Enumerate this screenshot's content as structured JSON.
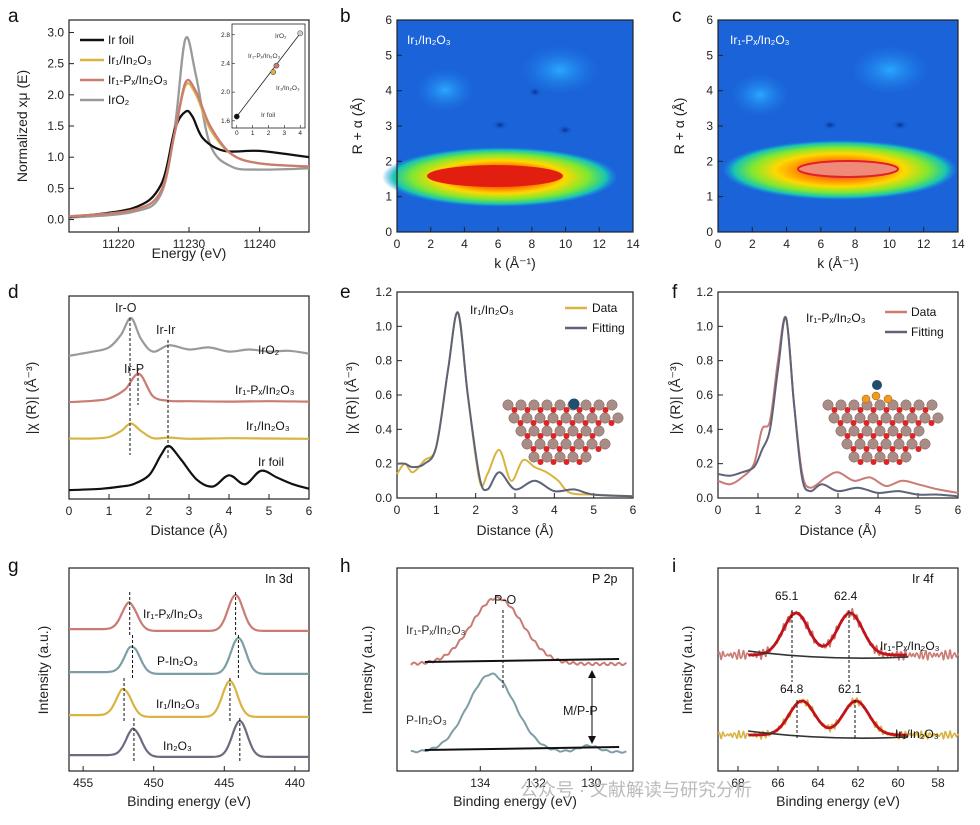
{
  "figure": {
    "panel_labels": [
      "a",
      "b",
      "c",
      "d",
      "e",
      "f",
      "g",
      "h",
      "i"
    ],
    "watermark": "公众号 · 文献解读与研究分析"
  },
  "colors": {
    "ir_foil": "#111111",
    "ir_in2o3": "#d9b443",
    "ir_px_in2o3": "#c97b74",
    "iro2": "#9a9a9a",
    "fit": "#5d6378",
    "p_in2o3": "#7e9ea6",
    "in2o3": "#6a6c82",
    "fit_red": "#c2121c"
  },
  "chart_data": [
    {
      "panel": "a",
      "type": "line",
      "xlabel": "Energy (eV)",
      "ylabel": "Normalized xμ (E)",
      "xlim": [
        11213,
        11247
      ],
      "ylim": [
        -0.2,
        3.2
      ],
      "xticks": [
        11220,
        11230,
        11240
      ],
      "yticks": [
        0.0,
        0.5,
        1.0,
        1.5,
        2.0,
        2.5,
        3.0
      ],
      "series": [
        {
          "name": "Ir foil",
          "x": [
            11213,
            11222,
            11226,
            11228,
            11229.5,
            11230.5,
            11232,
            11235,
            11240,
            11247
          ],
          "y": [
            0.04,
            0.18,
            0.55,
            1.45,
            1.73,
            1.65,
            1.3,
            1.1,
            1.1,
            1.0
          ]
        },
        {
          "name": "Ir₁/In₂O₃",
          "x": [
            11213,
            11222,
            11226,
            11228,
            11229.5,
            11231,
            11233,
            11236,
            11240,
            11247
          ],
          "y": [
            0.05,
            0.15,
            0.45,
            1.4,
            2.15,
            2.0,
            1.45,
            1.05,
            0.9,
            0.85
          ]
        },
        {
          "name": "Ir₁-Pₓ/In₂O₃",
          "x": [
            11213,
            11222,
            11226,
            11228,
            11229.5,
            11231,
            11233,
            11236,
            11240,
            11247
          ],
          "y": [
            0.05,
            0.15,
            0.45,
            1.4,
            2.2,
            2.05,
            1.5,
            1.05,
            0.9,
            0.85
          ]
        },
        {
          "name": "IrO₂",
          "x": [
            11213,
            11222,
            11226,
            11228,
            11229.5,
            11231,
            11233,
            11236,
            11240,
            11247
          ],
          "y": [
            0.03,
            0.12,
            0.4,
            1.5,
            2.9,
            2.3,
            1.2,
            0.85,
            0.8,
            0.82
          ]
        }
      ],
      "inset": {
        "xticks": [
          0,
          1,
          2,
          3,
          4
        ],
        "yticks": [
          1.6,
          2.0,
          2.4,
          2.8
        ],
        "xlim": [
          -0.3,
          4.3
        ],
        "ylim": [
          1.5,
          2.95
        ],
        "points": [
          {
            "name": "Ir foil",
            "x": 0,
            "y": 1.66
          },
          {
            "name": "Ir₁/In₂O₃",
            "x": 2.3,
            "y": 2.28
          },
          {
            "name": "Ir₁-Pₓ/In₂O₃",
            "x": 2.5,
            "y": 2.37
          },
          {
            "name": "IrO₂",
            "x": 4,
            "y": 2.82
          }
        ]
      }
    },
    {
      "panel": "b",
      "type": "heatmap",
      "title": "Ir₁/In₂O₃",
      "xlabel": "k (Å⁻¹)",
      "ylabel": "R + α (Å)",
      "xlim": [
        0,
        14
      ],
      "ylim": [
        0,
        6
      ],
      "xticks": [
        0,
        2,
        4,
        6,
        8,
        10,
        12,
        14
      ],
      "yticks": [
        0,
        1,
        2,
        3,
        4,
        5,
        6
      ],
      "maximum": {
        "k": 6.0,
        "R": 1.55
      }
    },
    {
      "panel": "c",
      "type": "heatmap",
      "title": "Ir₁-Pₓ/In₂O₃",
      "xlabel": "k (Å⁻¹)",
      "ylabel": "R + α (Å)",
      "xlim": [
        0,
        14
      ],
      "ylim": [
        0,
        6
      ],
      "xticks": [
        0,
        2,
        4,
        6,
        8,
        10,
        12,
        14
      ],
      "yticks": [
        0,
        1,
        2,
        3,
        4,
        5,
        6
      ],
      "maximum": {
        "k": 7.5,
        "R": 1.8
      }
    },
    {
      "panel": "d",
      "type": "line",
      "xlabel": "Distance (Å)",
      "ylabel": "|χ (R)| (Å⁻³)",
      "xlim": [
        0,
        6
      ],
      "xticks": [
        0,
        1,
        2,
        3,
        4,
        5,
        6
      ],
      "annotations": [
        {
          "text": "Ir-O",
          "x": 1.55
        },
        {
          "text": "Ir-Ir",
          "x": 2.5
        },
        {
          "text": "Ir-P",
          "x": 1.75
        }
      ],
      "series": [
        {
          "name": "IrO₂",
          "x": [
            0,
            0.6,
            1.0,
            1.3,
            1.55,
            1.8,
            2.1,
            2.5,
            3.0,
            3.5,
            4.0,
            4.5,
            5.0,
            5.5,
            6.0
          ],
          "y": [
            0.1,
            0.2,
            0.3,
            0.6,
            1.0,
            0.5,
            0.2,
            0.35,
            0.25,
            0.3,
            0.2,
            0.25,
            0.2,
            0.22,
            0.15
          ]
        },
        {
          "name": "Ir₁-Pₓ/In₂O₃",
          "x": [
            0,
            0.6,
            1.0,
            1.4,
            1.75,
            2.1,
            2.5,
            3.0,
            4.0,
            5.0,
            6.0
          ],
          "y": [
            0.02,
            0.05,
            0.1,
            0.3,
            0.65,
            0.15,
            0.05,
            0.04,
            0.03,
            0.04,
            0.03
          ]
        },
        {
          "name": "Ir₁/In₂O₃",
          "x": [
            0,
            0.6,
            1.0,
            1.3,
            1.55,
            1.8,
            2.1,
            2.5,
            3.0,
            4.0,
            5.0,
            6.0
          ],
          "y": [
            0.05,
            0.05,
            0.1,
            0.3,
            0.55,
            0.3,
            0.06,
            0.08,
            0.04,
            0.06,
            0.05,
            0.04
          ]
        },
        {
          "name": "Ir foil",
          "x": [
            0,
            0.8,
            1.3,
            1.6,
            2.0,
            2.3,
            2.5,
            2.8,
            3.2,
            3.6,
            4.0,
            4.4,
            4.8,
            5.2,
            5.6,
            6.0
          ],
          "y": [
            0.02,
            0.05,
            0.1,
            0.15,
            0.35,
            0.8,
            1.0,
            0.7,
            0.25,
            0.1,
            0.35,
            0.15,
            0.45,
            0.3,
            0.15,
            0.05
          ]
        }
      ]
    },
    {
      "panel": "e",
      "type": "line",
      "title": "Ir₁/In₂O₃",
      "xlabel": "Distance (Å)",
      "ylabel": "|χ (R)| (Å⁻³)",
      "xlim": [
        0,
        6
      ],
      "ylim": [
        0,
        1.2
      ],
      "xticks": [
        0,
        1,
        2,
        3,
        4,
        5,
        6
      ],
      "yticks": [
        0.0,
        0.2,
        0.4,
        0.6,
        0.8,
        1.0,
        1.2
      ],
      "series": [
        {
          "name": "Data",
          "x": [
            0,
            0.2,
            0.4,
            0.7,
            1.0,
            1.3,
            1.55,
            1.8,
            2.1,
            2.3,
            2.6,
            2.9,
            3.2,
            3.5,
            3.8,
            4.1,
            4.4,
            5.0,
            6.0
          ],
          "y": [
            0.14,
            0.2,
            0.15,
            0.22,
            0.3,
            0.75,
            1.08,
            0.6,
            0.1,
            0.14,
            0.28,
            0.1,
            0.22,
            0.18,
            0.15,
            0.1,
            0.03,
            0.02,
            0.01
          ]
        },
        {
          "name": "Fitting",
          "x": [
            0,
            0.2,
            0.4,
            0.7,
            1.0,
            1.3,
            1.55,
            1.8,
            2.1,
            2.3,
            2.6,
            3.0,
            3.5,
            4.0,
            4.5,
            5.0,
            6.0
          ],
          "y": [
            0.2,
            0.2,
            0.18,
            0.2,
            0.3,
            0.75,
            1.08,
            0.6,
            0.12,
            0.05,
            0.15,
            0.05,
            0.1,
            0.04,
            0.05,
            0.02,
            0.01
          ]
        }
      ]
    },
    {
      "panel": "f",
      "type": "line",
      "title": "Ir₁-Pₓ/In₂O₃",
      "xlabel": "Distance (Å)",
      "ylabel": "|χ (R)| (Å⁻³)",
      "xlim": [
        0,
        6
      ],
      "ylim": [
        0,
        1.2
      ],
      "xticks": [
        0,
        1,
        2,
        3,
        4,
        5,
        6
      ],
      "yticks": [
        0.0,
        0.2,
        0.4,
        0.6,
        0.8,
        1.0,
        1.2
      ],
      "series": [
        {
          "name": "Data",
          "x": [
            0,
            0.3,
            0.6,
            0.9,
            1.1,
            1.3,
            1.5,
            1.7,
            1.9,
            2.1,
            2.3,
            2.7,
            3.0,
            3.4,
            3.8,
            4.2,
            4.6,
            5.0,
            5.5,
            6.0
          ],
          "y": [
            0.1,
            0.08,
            0.12,
            0.2,
            0.4,
            0.45,
            0.8,
            1.05,
            0.55,
            0.15,
            0.06,
            0.12,
            0.15,
            0.1,
            0.12,
            0.07,
            0.1,
            0.08,
            0.05,
            0.03
          ]
        },
        {
          "name": "Fitting",
          "x": [
            0,
            0.3,
            0.6,
            0.9,
            1.1,
            1.3,
            1.5,
            1.7,
            1.9,
            2.1,
            2.3,
            2.6,
            3.0,
            3.5,
            4.0,
            4.5,
            5.0,
            5.5,
            6.0
          ],
          "y": [
            0.14,
            0.13,
            0.15,
            0.18,
            0.28,
            0.4,
            0.75,
            1.05,
            0.55,
            0.12,
            0.04,
            0.08,
            0.04,
            0.06,
            0.03,
            0.04,
            0.02,
            0.02,
            0.01
          ]
        }
      ]
    },
    {
      "panel": "g",
      "type": "line",
      "title": "In 3d",
      "xlabel": "Binding energy (eV)",
      "ylabel": "Intensity (a.u.)",
      "xlim": [
        456,
        439
      ],
      "xticks": [
        455,
        450,
        445,
        440
      ],
      "series": [
        {
          "name": "Ir₁-Pₓ/In₂O₃",
          "peaks": [
            451.7,
            444.2
          ]
        },
        {
          "name": "P-In₂O₃",
          "peaks": [
            451.5,
            444.0
          ]
        },
        {
          "name": "Ir₁/In₂O₃",
          "peaks": [
            452.1,
            444.6
          ]
        },
        {
          "name": "In₂O₃",
          "peaks": [
            451.4,
            443.9
          ]
        }
      ]
    },
    {
      "panel": "h",
      "type": "line",
      "title": "P 2p",
      "xlabel": "Binding energy (eV)",
      "ylabel": "Intensity (a.u.)",
      "xlim": [
        137,
        128.5
      ],
      "xticks": [
        134,
        132,
        130
      ],
      "annotations": [
        {
          "text": "P-O",
          "x": 133.4
        },
        {
          "text": "M/P-P",
          "x": 130.1
        }
      ],
      "series": [
        {
          "name": "Ir₁-Pₓ/In₂O₃",
          "peaks": [
            133.4
          ]
        },
        {
          "name": "P-In₂O₃",
          "peaks": [
            133.6,
            130.1
          ]
        }
      ]
    },
    {
      "panel": "i",
      "type": "line",
      "title": "Ir 4f",
      "xlabel": "Binding energy (eV)",
      "ylabel": "Intensity (a.u.)",
      "xticks": [
        68,
        66,
        64,
        62,
        60,
        58
      ],
      "series": [
        {
          "name": "Ir₁-Pₓ/In₂O₃",
          "peaks": [
            65.1,
            62.4
          ]
        },
        {
          "name": "Ir₁/In₂O₃",
          "peaks": [
            64.8,
            62.1
          ]
        }
      ],
      "peak_labels": [
        "65.1",
        "62.4",
        "64.8",
        "62.1"
      ]
    }
  ]
}
